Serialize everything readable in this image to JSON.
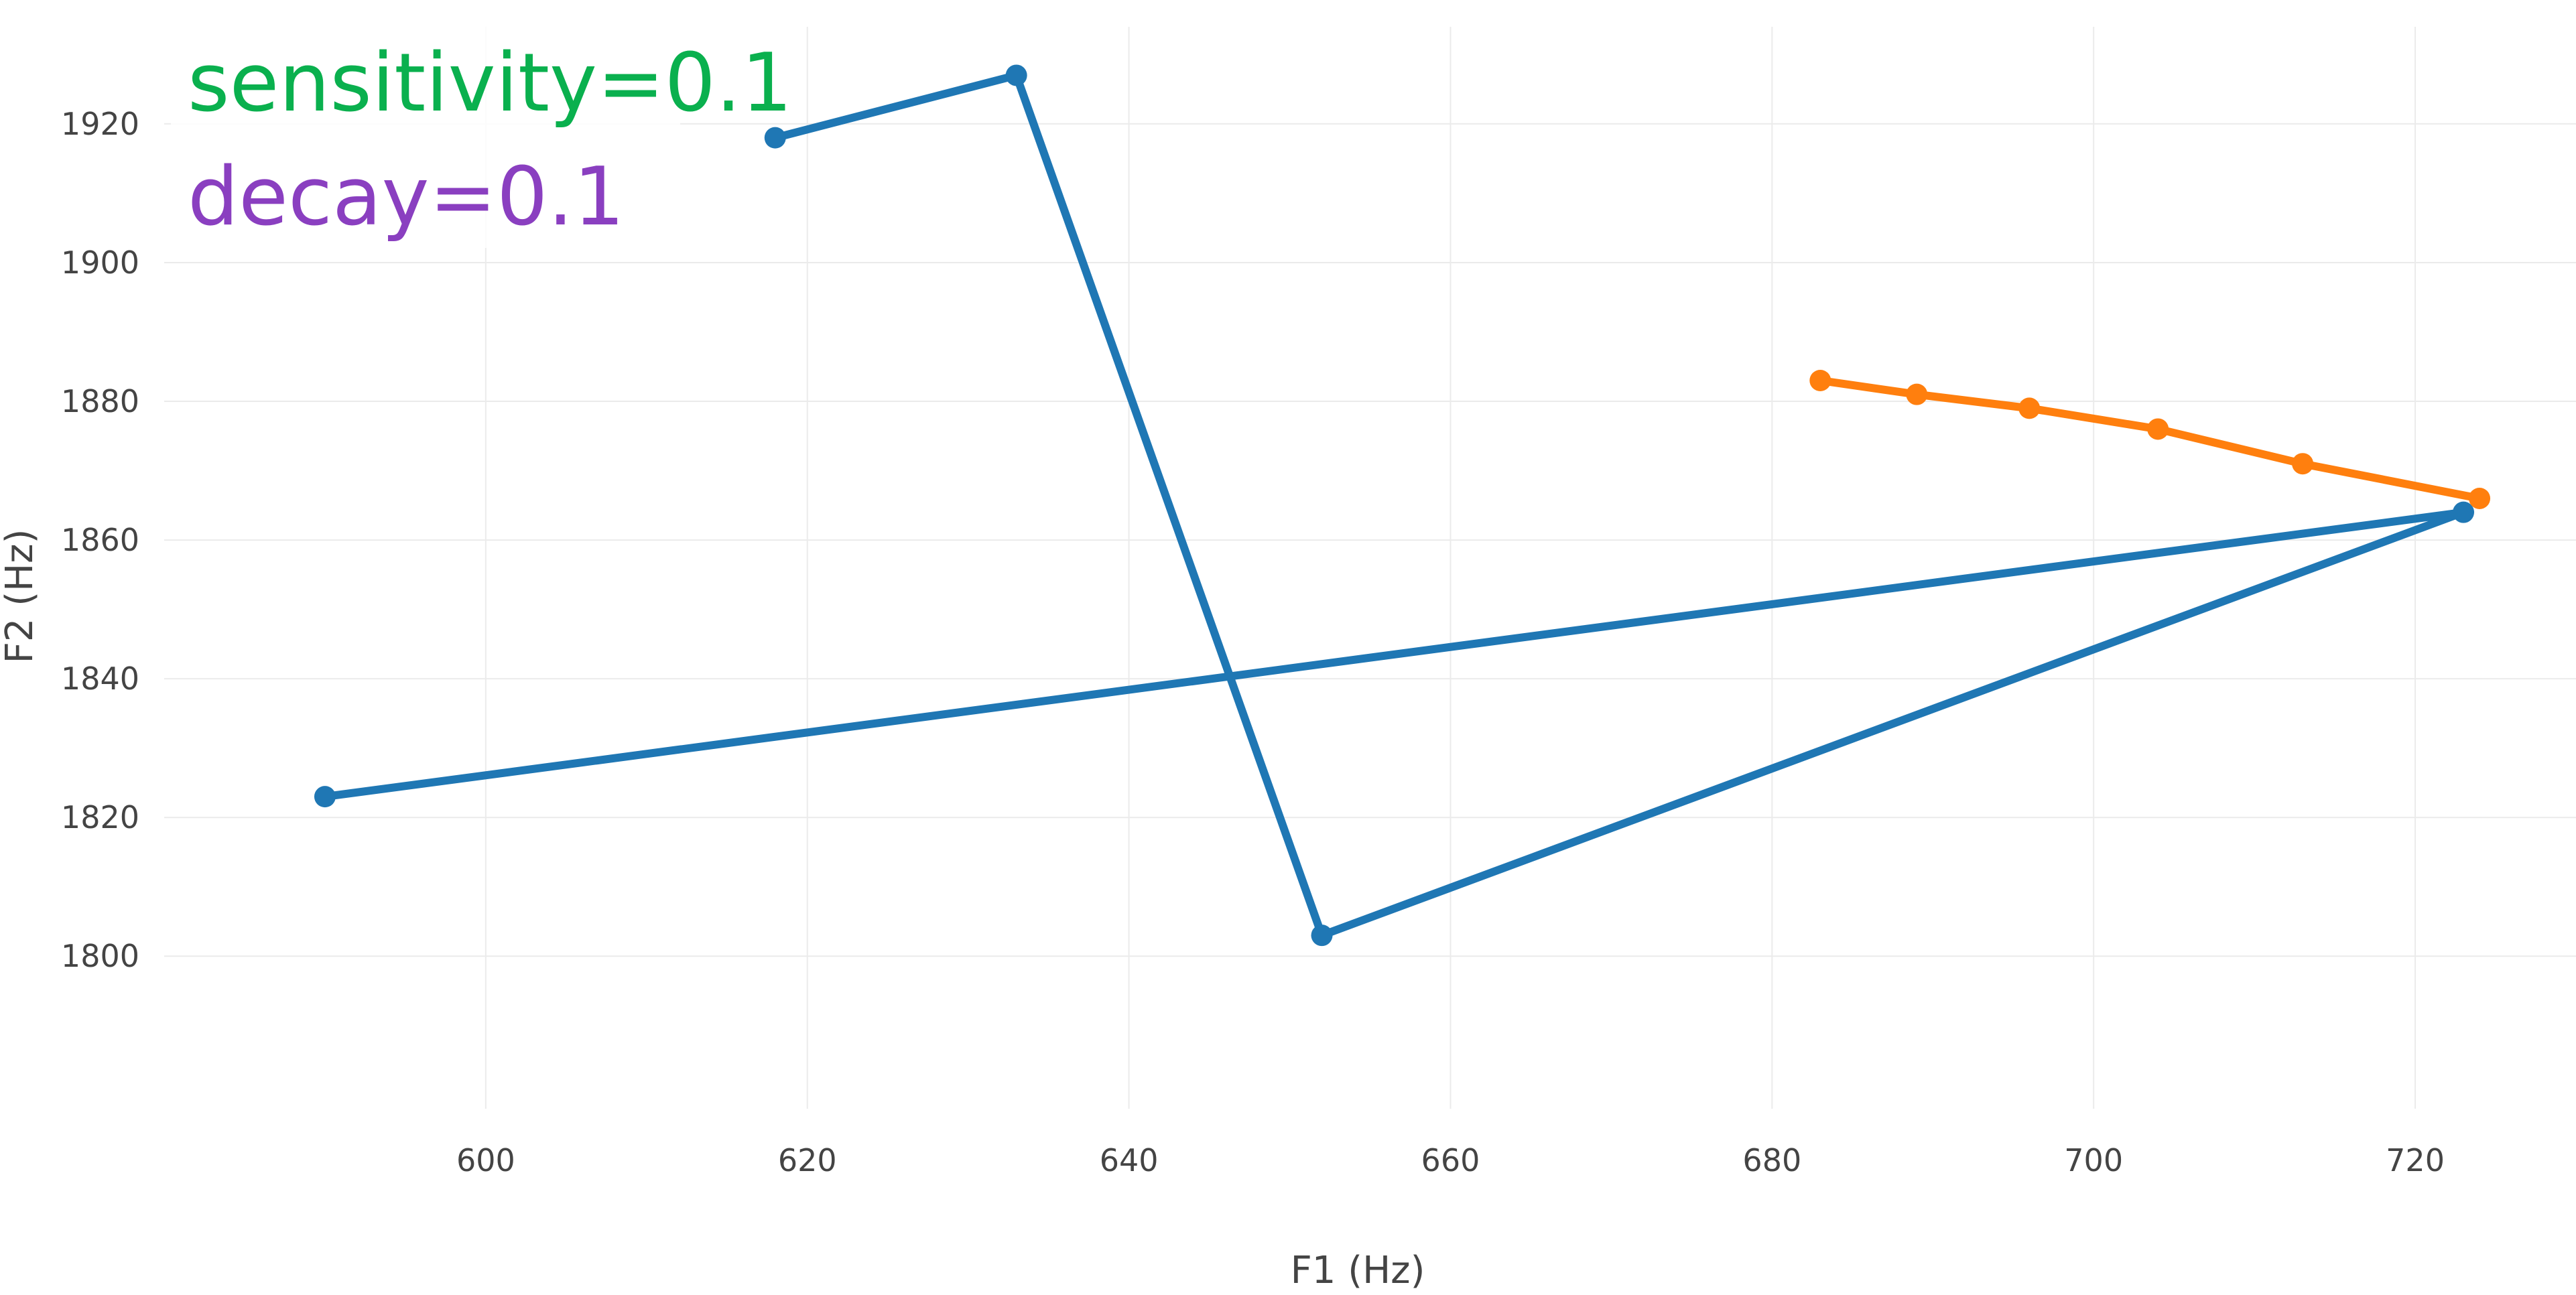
{
  "chart_data": {
    "type": "line",
    "title": "",
    "xlabel": "F1 (Hz)",
    "ylabel": "F2 (Hz)",
    "xlim": [
      580,
      730
    ],
    "ylim": [
      1778,
      1934
    ],
    "x_ticks": [
      600,
      620,
      640,
      660,
      680,
      700,
      720
    ],
    "y_ticks": [
      1800,
      1820,
      1840,
      1860,
      1880,
      1900,
      1920
    ],
    "grid": true,
    "legend": "none",
    "annotations": [
      {
        "text": "sensitivity=0.1",
        "color": "#0ab04e"
      },
      {
        "text": "decay=0.1",
        "color": "#8a3fc0"
      }
    ],
    "series": [
      {
        "color": "#1f77b4",
        "points": [
          {
            "x": 618,
            "y": 1918
          },
          {
            "x": 633,
            "y": 1927
          },
          {
            "x": 652,
            "y": 1803
          },
          {
            "x": 723,
            "y": 1864
          },
          {
            "x": 590,
            "y": 1823
          }
        ]
      },
      {
        "color": "#ff7f0e",
        "points": [
          {
            "x": 683,
            "y": 1883
          },
          {
            "x": 689,
            "y": 1881
          },
          {
            "x": 696,
            "y": 1879
          },
          {
            "x": 704,
            "y": 1876
          },
          {
            "x": 713,
            "y": 1871
          },
          {
            "x": 724,
            "y": 1866
          }
        ]
      }
    ]
  }
}
